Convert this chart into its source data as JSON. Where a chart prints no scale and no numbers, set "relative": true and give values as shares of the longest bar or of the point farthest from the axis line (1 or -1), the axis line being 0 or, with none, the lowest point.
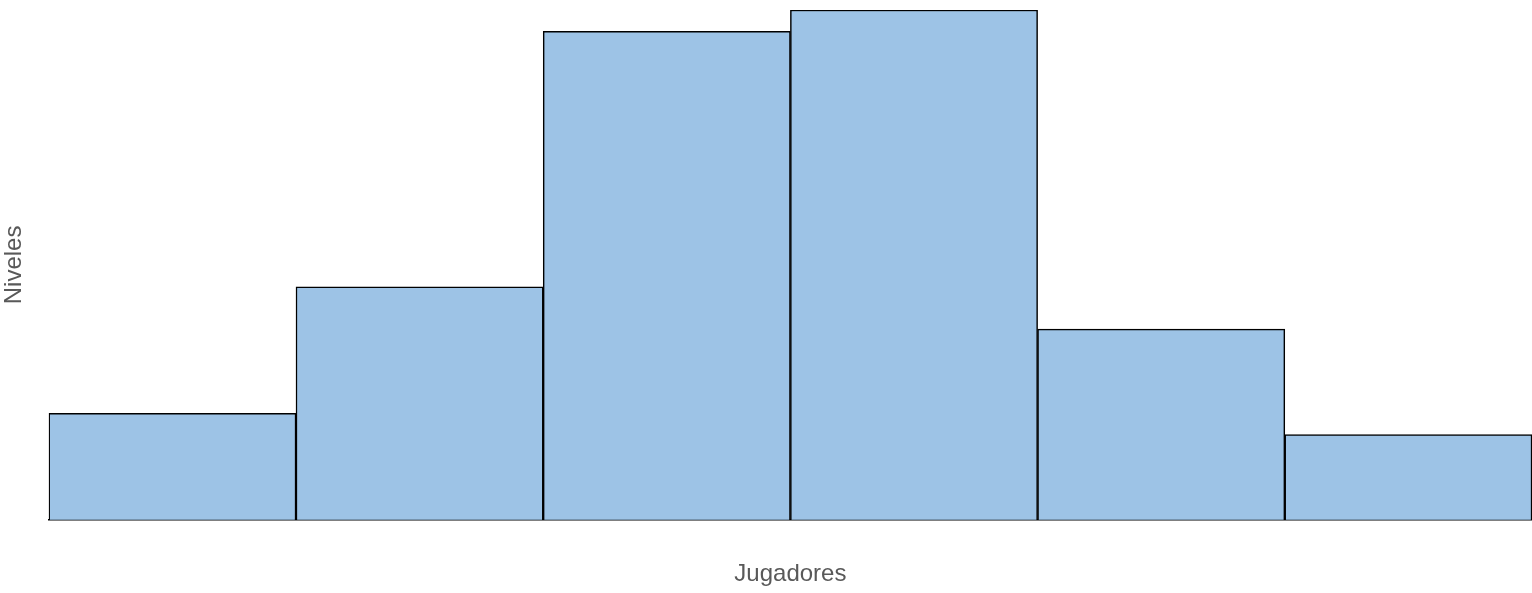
{
  "chart_data": {
    "type": "bar",
    "xlabel": "Jugadores",
    "ylabel": "Niveles",
    "categories": [
      null,
      null,
      null,
      null,
      null,
      null
    ],
    "values": [
      0.209,
      0.457,
      0.958,
      1,
      0.374,
      0.167
    ],
    "color": "#9dc3e6",
    "relative": true,
    "grid": false,
    "legend": false
  }
}
